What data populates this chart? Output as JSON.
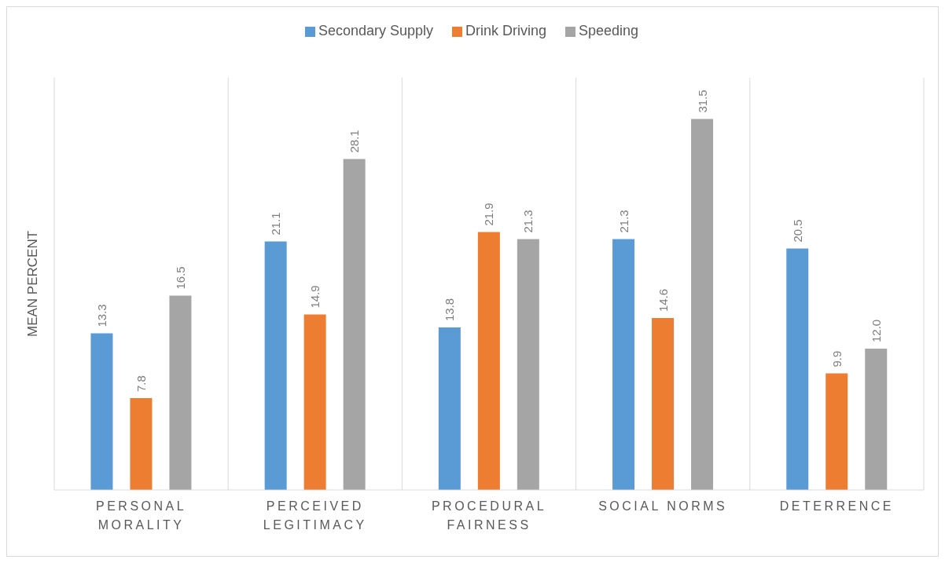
{
  "chart_data": {
    "type": "bar",
    "ylabel": "MEAN PERCENT",
    "categories": [
      "PERSONAL MORALITY",
      "PERCEIVED LEGITIMACY",
      "PROCEDURAL FAIRNESS",
      "SOCIAL NORMS",
      "DETERRENCE"
    ],
    "series": [
      {
        "name": "Secondary Supply",
        "color": "#5b9bd5",
        "values": [
          13.3,
          21.1,
          13.8,
          21.3,
          20.5
        ],
        "value_labels": [
          "13.3",
          "21.1",
          "13.8",
          "21.3",
          "20.5"
        ]
      },
      {
        "name": "Drink Driving",
        "color": "#ed7d31",
        "values": [
          7.8,
          14.9,
          21.9,
          14.6,
          9.9
        ],
        "value_labels": [
          "7.8",
          "14.9",
          "21.9",
          "14.6",
          "9.9"
        ]
      },
      {
        "name": "Speeding",
        "color": "#a5a5a5",
        "values": [
          16.5,
          28.1,
          21.3,
          31.5,
          12.0
        ],
        "value_labels": [
          "16.5",
          "28.1",
          "21.3",
          "31.5",
          "12.0"
        ]
      }
    ],
    "ylim": [
      0,
      35
    ],
    "grid": "x",
    "legend": "top",
    "tick_labels": "x"
  }
}
